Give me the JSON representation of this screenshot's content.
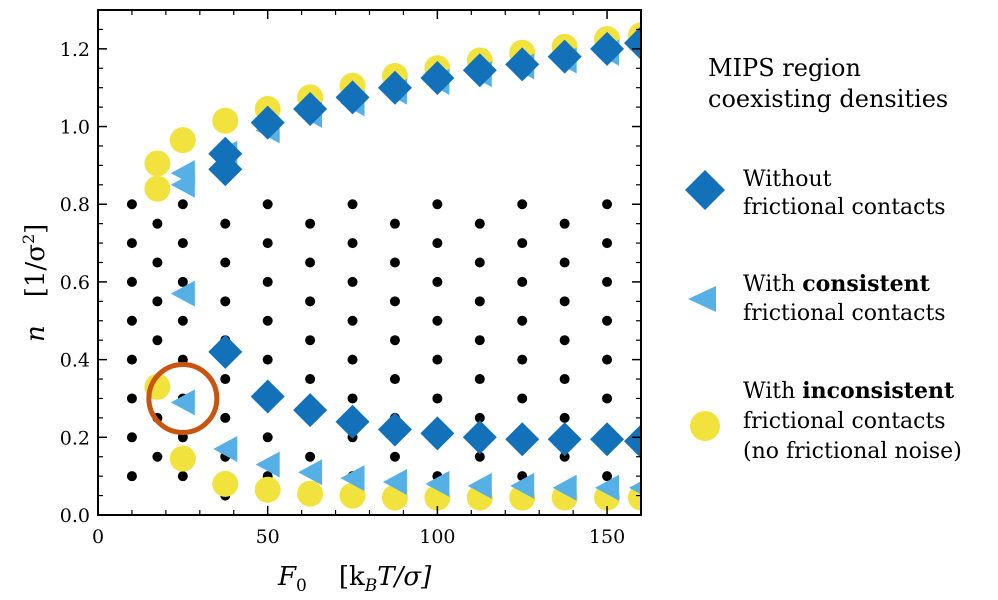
{
  "chart_data": {
    "type": "scatter",
    "xlabel": "F₀   [k_BT/σ]",
    "xlabel_main": "F",
    "xlabel_sub": "0",
    "xlabel_unit": "[k",
    "xlabel_unit_sub": "B",
    "xlabel_unit_rest": "T/σ]",
    "ylabel_main": "n",
    "ylabel_unit": "[1/σ",
    "ylabel_unit_sup": "2",
    "ylabel_unit_close": "]",
    "xlim": [
      0,
      160
    ],
    "ylim": [
      0,
      1.3
    ],
    "xticks": [
      0,
      50,
      100,
      150
    ],
    "xtick_labels": [
      "0",
      "50",
      "100",
      "150"
    ],
    "yticks": [
      0.0,
      0.2,
      0.4,
      0.6,
      0.8,
      1.0,
      1.2
    ],
    "ytick_labels": [
      "0.0",
      "0.2",
      "0.4",
      "0.6",
      "0.8",
      "1.0",
      "1.2"
    ],
    "grid_points": {
      "columns": [
        {
          "x": 10,
          "y": [
            0.1,
            0.2,
            0.3,
            0.4,
            0.5,
            0.6,
            0.7,
            0.8
          ]
        },
        {
          "x": 17.5,
          "y": [
            0.15,
            0.25,
            0.35,
            0.45,
            0.55,
            0.65,
            0.75
          ]
        },
        {
          "x": 25,
          "y": [
            0.1,
            0.2,
            0.3,
            0.4,
            0.5,
            0.6,
            0.7,
            0.8
          ]
        },
        {
          "x": 37.5,
          "y": [
            0.05,
            0.15,
            0.25,
            0.35,
            0.45,
            0.55,
            0.65,
            0.75
          ]
        },
        {
          "x": 50,
          "y": [
            0.1,
            0.2,
            0.3,
            0.4,
            0.5,
            0.6,
            0.7,
            0.8
          ]
        },
        {
          "x": 62.5,
          "y": [
            0.05,
            0.15,
            0.25,
            0.35,
            0.45,
            0.55,
            0.65,
            0.75
          ]
        },
        {
          "x": 75,
          "y": [
            0.1,
            0.2,
            0.3,
            0.4,
            0.5,
            0.6,
            0.7,
            0.8
          ]
        },
        {
          "x": 87.5,
          "y": [
            0.05,
            0.15,
            0.25,
            0.35,
            0.45,
            0.55,
            0.65,
            0.75
          ]
        },
        {
          "x": 100,
          "y": [
            0.1,
            0.2,
            0.3,
            0.4,
            0.5,
            0.6,
            0.7,
            0.8
          ]
        },
        {
          "x": 112.5,
          "y": [
            0.05,
            0.15,
            0.25,
            0.35,
            0.45,
            0.55,
            0.65,
            0.75
          ]
        },
        {
          "x": 125,
          "y": [
            0.1,
            0.2,
            0.3,
            0.4,
            0.5,
            0.6,
            0.7,
            0.8
          ]
        },
        {
          "x": 137.5,
          "y": [
            0.05,
            0.15,
            0.25,
            0.35,
            0.45,
            0.55,
            0.65,
            0.75
          ]
        },
        {
          "x": 150,
          "y": [
            0.1,
            0.2,
            0.3,
            0.4,
            0.5,
            0.6,
            0.7,
            0.8
          ]
        }
      ]
    },
    "series": [
      {
        "name": "With inconsistent frictional contacts (no frictional noise)",
        "marker": "circle",
        "color": "#f2e23e",
        "points": [
          [
            17.5,
            0.84
          ],
          [
            17.5,
            0.905
          ],
          [
            25,
            0.965
          ],
          [
            37.5,
            1.015
          ],
          [
            50,
            1.045
          ],
          [
            62.5,
            1.075
          ],
          [
            75,
            1.105
          ],
          [
            87.5,
            1.13
          ],
          [
            100,
            1.15
          ],
          [
            112.5,
            1.17
          ],
          [
            125,
            1.19
          ],
          [
            137.5,
            1.205
          ],
          [
            150,
            1.225
          ],
          [
            160,
            1.235
          ],
          [
            17.5,
            0.33
          ],
          [
            25,
            0.145
          ],
          [
            37.5,
            0.08
          ],
          [
            50,
            0.065
          ],
          [
            62.5,
            0.055
          ],
          [
            75,
            0.05
          ],
          [
            87.5,
            0.045
          ],
          [
            100,
            0.045
          ],
          [
            112.5,
            0.045
          ],
          [
            125,
            0.045
          ],
          [
            137.5,
            0.045
          ],
          [
            150,
            0.045
          ],
          [
            160,
            0.045
          ]
        ]
      },
      {
        "name": "With consistent frictional contacts",
        "marker": "triangle-left",
        "color": "#56b0e6",
        "points": [
          [
            25,
            0.85
          ],
          [
            25,
            0.88
          ],
          [
            37.5,
            0.93
          ],
          [
            50,
            0.99
          ],
          [
            62.5,
            1.03
          ],
          [
            75,
            1.06
          ],
          [
            87.5,
            1.09
          ],
          [
            100,
            1.115
          ],
          [
            112.5,
            1.135
          ],
          [
            125,
            1.155
          ],
          [
            137.5,
            1.17
          ],
          [
            150,
            1.19
          ],
          [
            160,
            1.2
          ],
          [
            25,
            0.57
          ],
          [
            25,
            0.29
          ],
          [
            37.5,
            0.17
          ],
          [
            50,
            0.13
          ],
          [
            62.5,
            0.11
          ],
          [
            75,
            0.095
          ],
          [
            87.5,
            0.085
          ],
          [
            100,
            0.08
          ],
          [
            112.5,
            0.075
          ],
          [
            125,
            0.075
          ],
          [
            137.5,
            0.07
          ],
          [
            150,
            0.07
          ],
          [
            160,
            0.07
          ]
        ]
      },
      {
        "name": "Without frictional contacts",
        "marker": "diamond",
        "color": "#1271b8",
        "points": [
          [
            37.5,
            0.89
          ],
          [
            37.5,
            0.93
          ],
          [
            50,
            1.01
          ],
          [
            62.5,
            1.045
          ],
          [
            75,
            1.075
          ],
          [
            87.5,
            1.1
          ],
          [
            100,
            1.125
          ],
          [
            112.5,
            1.145
          ],
          [
            125,
            1.16
          ],
          [
            137.5,
            1.18
          ],
          [
            150,
            1.2
          ],
          [
            160,
            1.215
          ],
          [
            37.5,
            0.42
          ],
          [
            50,
            0.305
          ],
          [
            62.5,
            0.27
          ],
          [
            75,
            0.24
          ],
          [
            87.5,
            0.22
          ],
          [
            100,
            0.21
          ],
          [
            112.5,
            0.2
          ],
          [
            125,
            0.195
          ],
          [
            137.5,
            0.195
          ],
          [
            150,
            0.195
          ],
          [
            160,
            0.19
          ]
        ]
      }
    ],
    "highlight_circle": {
      "x": 25,
      "y": 0.3,
      "color": "#c8540f"
    },
    "legend": {
      "position": "right",
      "title_line1": "MIPS region",
      "title_line2": "coexisting densities",
      "entries": [
        {
          "marker": "diamond",
          "color": "#1271b8",
          "line1": "Without",
          "line2": "frictional contacts",
          "line3": ""
        },
        {
          "marker": "triangle-left",
          "color": "#56b0e6",
          "line1_prefix": "With ",
          "line1_bold": "consistent",
          "line2": "frictional contacts"
        },
        {
          "marker": "circle",
          "color": "#f2e23e",
          "line1_prefix": "With ",
          "line1_bold": "inconsistent",
          "line2": "frictional contacts",
          "line3": "(no frictional noise)"
        }
      ]
    }
  }
}
